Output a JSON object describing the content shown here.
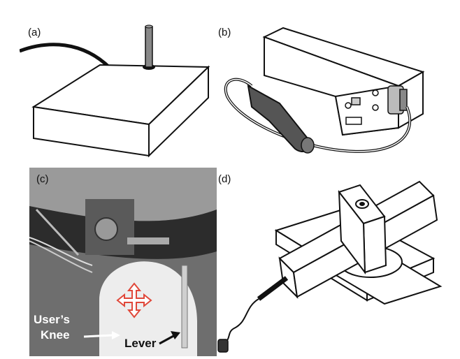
{
  "panels": {
    "a": {
      "label": "(a)"
    },
    "b": {
      "label": "(b)"
    },
    "c": {
      "label": "(c)",
      "knee_line1": "User’s",
      "knee_line2": "Knee",
      "lever": "Lever"
    },
    "d": {
      "label": "(d)"
    }
  },
  "colors": {
    "photo_bg": "#7a7a7a",
    "arrow_red": "#e0483a"
  },
  "icons": [
    "joystick-box",
    "control-box",
    "knee-lever-photo",
    "four-way-arrow-icon",
    "lever-assembly"
  ]
}
